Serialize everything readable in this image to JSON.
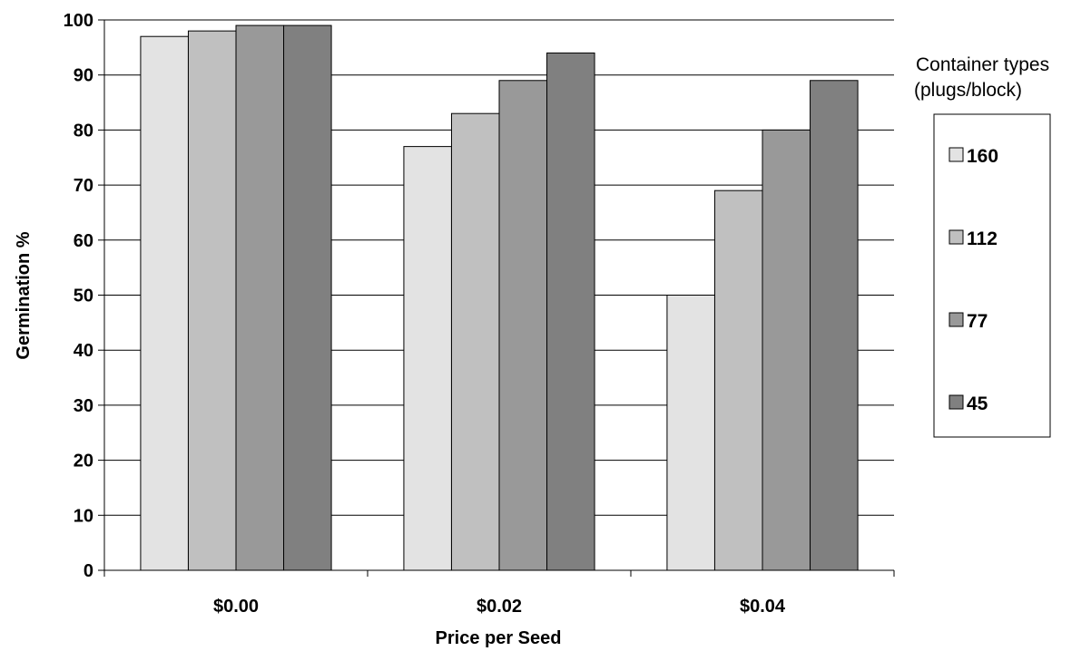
{
  "chart_data": {
    "type": "bar",
    "title": "",
    "xlabel": "Price per Seed",
    "ylabel": "Germination %",
    "ylim": [
      0,
      100
    ],
    "yticks": [
      0,
      10,
      20,
      30,
      40,
      50,
      60,
      70,
      80,
      90,
      100
    ],
    "grid": true,
    "categories": [
      "$0.00",
      "$0.02",
      "$0.04"
    ],
    "legend": {
      "position": "right",
      "title_lines": [
        "Container types",
        "(plugs/block)"
      ]
    },
    "series": [
      {
        "name": "160",
        "color": "#e3e3e3",
        "values": [
          97,
          77,
          50
        ]
      },
      {
        "name": "112",
        "color": "#c0c0c0",
        "values": [
          98,
          83,
          69
        ]
      },
      {
        "name": "77",
        "color": "#999999",
        "values": [
          99,
          89,
          80
        ]
      },
      {
        "name": "45",
        "color": "#808080",
        "values": [
          99,
          94,
          89
        ]
      }
    ]
  }
}
